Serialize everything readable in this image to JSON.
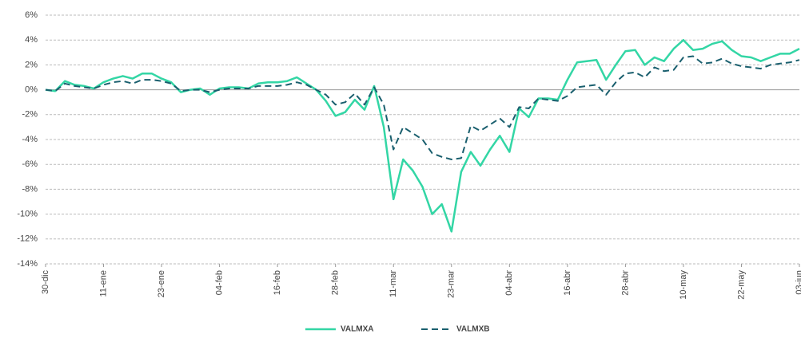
{
  "chart_data": {
    "type": "line",
    "categories": [
      "30-dic",
      null,
      null,
      null,
      null,
      null,
      "11-ene",
      null,
      null,
      null,
      null,
      null,
      "23-ene",
      null,
      null,
      null,
      null,
      null,
      "04-feb",
      null,
      null,
      null,
      null,
      null,
      "16-feb",
      null,
      null,
      null,
      null,
      null,
      "28-feb",
      null,
      null,
      null,
      null,
      null,
      "11-mar",
      null,
      null,
      null,
      null,
      null,
      "23-mar",
      null,
      null,
      null,
      null,
      null,
      "04-abr",
      null,
      null,
      null,
      null,
      null,
      "16-abr",
      null,
      null,
      null,
      null,
      null,
      "28-abr",
      null,
      null,
      null,
      null,
      null,
      "10-may",
      null,
      null,
      null,
      null,
      null,
      "22-may",
      null,
      null,
      null,
      null,
      null,
      "03-jun"
    ],
    "series": [
      {
        "name": "VALMXA",
        "color": "#33d6a5",
        "dash": false,
        "values": [
          0,
          -0.1,
          0.7,
          0.4,
          0.3,
          0.1,
          0.6,
          0.9,
          1.1,
          0.9,
          1.3,
          1.3,
          0.9,
          0.6,
          -0.2,
          0,
          0.1,
          -0.4,
          0.1,
          0.2,
          0.2,
          0.1,
          0.5,
          0.6,
          0.6,
          0.7,
          1.0,
          0.5,
          0,
          -0.9,
          -2.1,
          -1.8,
          -0.8,
          -1.6,
          0.3,
          -3.0,
          -8.8,
          -5.6,
          -6.5,
          -7.8,
          -10.0,
          -9.2,
          -11.4,
          -6.6,
          -5.0,
          -6.1,
          -4.8,
          -3.7,
          -5.0,
          -1.5,
          -2.2,
          -0.7,
          -0.7,
          -0.8,
          0.8,
          2.2,
          2.3,
          2.4,
          0.8,
          2.0,
          3.1,
          3.2,
          2.0,
          2.6,
          2.3,
          3.3,
          4.0,
          3.2,
          3.3,
          3.7,
          3.9,
          3.2,
          2.7,
          2.6,
          2.3,
          2.6,
          2.9,
          2.9,
          3.3
        ]
      },
      {
        "name": "VALMXB",
        "color": "#1a5f6e",
        "dash": true,
        "values": [
          0,
          -0.1,
          0.5,
          0.3,
          0.2,
          0.1,
          0.4,
          0.6,
          0.7,
          0.5,
          0.8,
          0.8,
          0.7,
          0.5,
          -0.1,
          0,
          0,
          -0.2,
          0,
          0.1,
          0.1,
          0.1,
          0.3,
          0.3,
          0.3,
          0.4,
          0.6,
          0.4,
          0,
          -0.4,
          -1.2,
          -1.0,
          -0.3,
          -1.2,
          0.2,
          -1.2,
          -4.8,
          -3.0,
          -3.5,
          -4.0,
          -5.1,
          -5.4,
          -5.6,
          -5.5,
          -2.9,
          -3.3,
          -2.8,
          -2.3,
          -3.0,
          -1.4,
          -1.5,
          -0.7,
          -0.8,
          -0.9,
          -0.5,
          0.2,
          0.3,
          0.4,
          -0.4,
          0.6,
          1.3,
          1.4,
          1.0,
          1.8,
          1.5,
          1.6,
          2.6,
          2.7,
          2.1,
          2.2,
          2.5,
          2.1,
          1.9,
          1.8,
          1.7,
          2.0,
          2.1,
          2.2,
          2.4
        ]
      }
    ],
    "ylim": [
      -14,
      6
    ],
    "yticks": [
      {
        "value": -14,
        "label": "-14%"
      },
      {
        "value": -12,
        "label": "-12%"
      },
      {
        "value": -10,
        "label": "-10%"
      },
      {
        "value": -8,
        "label": "-8%"
      },
      {
        "value": -6,
        "label": "-6%"
      },
      {
        "value": -4,
        "label": "-4%"
      },
      {
        "value": -2,
        "label": "-2%"
      },
      {
        "value": 0,
        "label": "0%"
      },
      {
        "value": 2,
        "label": "2%"
      },
      {
        "value": 4,
        "label": "4%"
      },
      {
        "value": 6,
        "label": "6%"
      }
    ],
    "grid": true,
    "legend": "bottom"
  }
}
